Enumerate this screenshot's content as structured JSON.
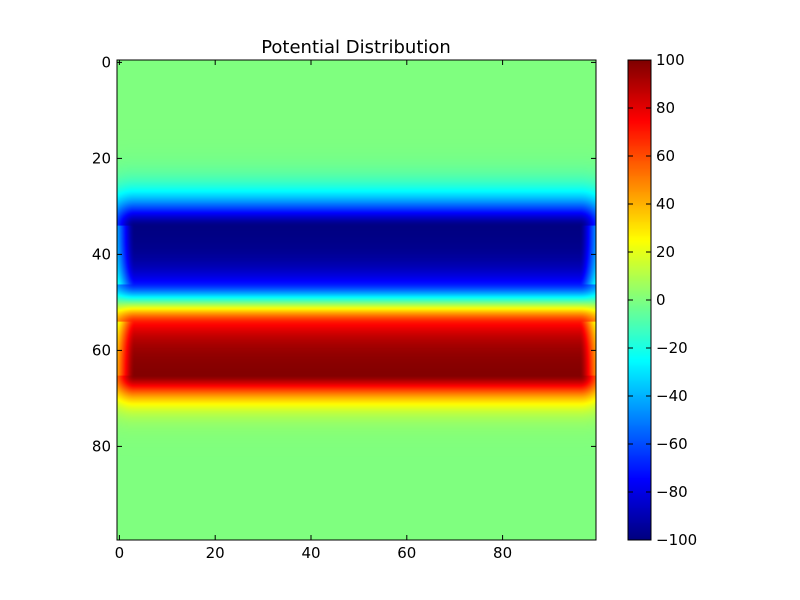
{
  "chart_data": {
    "type": "heatmap",
    "title": "Potential Distribution",
    "xlabel": "",
    "ylabel": "",
    "grid_size": [
      100,
      100
    ],
    "xlim": [
      -0.5,
      99.5
    ],
    "ylim": [
      99.5,
      -0.5
    ],
    "x_ticks": [
      0,
      20,
      40,
      60,
      80
    ],
    "x_tick_labels": [
      "0",
      "20",
      "40",
      "60",
      "80"
    ],
    "y_ticks": [
      0,
      20,
      40,
      60,
      80
    ],
    "y_tick_labels": [
      "0",
      "20",
      "40",
      "60",
      "80"
    ],
    "colormap": "jet",
    "colormap_stops": [
      "#000080",
      "#0000ff",
      "#00ffff",
      "#7fff7f",
      "#ffff00",
      "#ff0000",
      "#800000"
    ],
    "value_range": [
      -100,
      100
    ],
    "background_value": 0,
    "plates": [
      {
        "name": "",
        "value": -100,
        "rows": [
          34,
          46
        ],
        "cols": [
          3,
          96
        ],
        "fringe_inner": 7,
        "fringe_outer": 6
      },
      {
        "name": "",
        "value": 100,
        "rows": [
          54,
          65
        ],
        "cols": [
          3,
          96
        ],
        "fringe_inner": 5,
        "fringe_outer": 7
      }
    ],
    "colorbar": {
      "range": [
        -100,
        100
      ],
      "ticks": [
        100,
        80,
        60,
        40,
        20,
        0,
        -20,
        -40,
        -60,
        -80,
        -100
      ],
      "tick_labels": [
        "100",
        "80",
        "60",
        "40",
        "20",
        "0",
        "−20",
        "−40",
        "−60",
        "−80",
        "−100"
      ]
    }
  }
}
